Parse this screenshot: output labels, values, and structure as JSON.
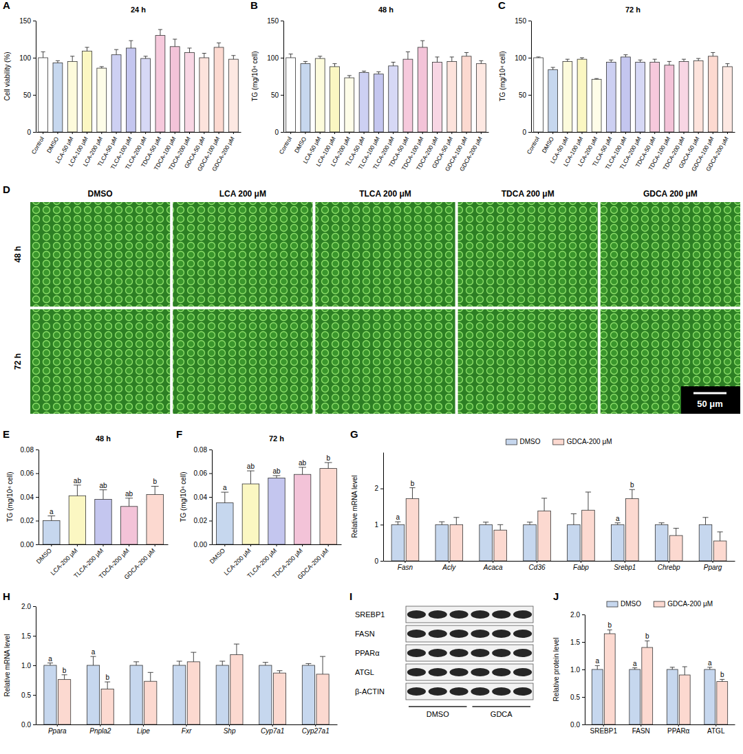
{
  "chart_data": [
    {
      "panel": "A",
      "type": "bar",
      "title": "24 h",
      "y_label": "Cell viability (%)",
      "categories": [
        "Control",
        "DMSO",
        "LCA-50 μM",
        "LCA-100 μM",
        "LCA-200 μM",
        "TLCA-50 μM",
        "TLCA-100 μM",
        "TLCA-200 μM",
        "TDCA-50 μM",
        "TDCA-100 μM",
        "TDCA-200 μM",
        "GDCA-50 μM",
        "GDCA-100 μM",
        "GDCA-200 μM"
      ],
      "values": [
        100,
        93,
        95,
        109,
        86,
        104,
        113,
        99,
        130,
        115,
        107,
        100,
        114,
        98
      ],
      "errors": [
        8,
        3,
        7,
        5,
        2,
        7,
        10,
        3,
        8,
        10,
        6,
        6,
        6,
        5
      ],
      "colors": [
        "#ffffff",
        "#c6d7ee",
        "#fdfbdc",
        "#fbf7c2",
        "#fefde8",
        "#cdd0f2",
        "#c4c6ef",
        "#d6d8f5",
        "#f6c9dc",
        "#f3c3d8",
        "#f8d6e4",
        "#fde3dc",
        "#fcd9d0",
        "#fde8e2"
      ],
      "ylim": [
        0,
        150
      ],
      "yticks": [
        0,
        50,
        100,
        150
      ]
    },
    {
      "panel": "B",
      "type": "bar",
      "title": "48 h",
      "y_label": "TG (mg/10⁴ cell)",
      "categories": [
        "Control",
        "DMSO",
        "LCA-50 μM",
        "LCA-100 μM",
        "LCA-200 μM",
        "TLCA-50 μM",
        "TLCA-100 μM",
        "TLCA-200 μM",
        "TDCA-50 μM",
        "TDCA-100 μM",
        "TDCA-200 μM",
        "GDCA-50 μM",
        "GDCA-100 μM",
        "GDCA-200 μM"
      ],
      "values": [
        100,
        92,
        99,
        88,
        73,
        80,
        78,
        89,
        98,
        114,
        94,
        95,
        102,
        92
      ],
      "errors": [
        5,
        3,
        3,
        4,
        3,
        2,
        3,
        5,
        10,
        9,
        7,
        6,
        5,
        4
      ],
      "colors": [
        "#ffffff",
        "#c6d7ee",
        "#fdfbdc",
        "#fbf7c2",
        "#fefde8",
        "#cdd0f2",
        "#c4c6ef",
        "#d6d8f5",
        "#f6c9dc",
        "#f3c3d8",
        "#f8d6e4",
        "#fde3dc",
        "#fcd9d0",
        "#fde8e2"
      ],
      "ylim": [
        0,
        150
      ],
      "yticks": [
        0,
        50,
        100,
        150
      ]
    },
    {
      "panel": "C",
      "type": "bar",
      "title": "72 h",
      "y_label": "TG (mg/10⁴ cell)",
      "categories": [
        "Control",
        "DMSO",
        "LCA-50 μM",
        "LCA-100 μM",
        "LCA-200 μM",
        "TLCA-50 μM",
        "TLCA-100 μM",
        "TLCA-200 μM",
        "TDCA-50 μM",
        "TDCA-100 μM",
        "TDCA-200 μM",
        "GDCA-50 μM",
        "GDCA-100 μM",
        "GDCA-200 μM"
      ],
      "values": [
        100,
        84,
        95,
        98,
        71,
        94,
        101,
        94,
        94,
        90,
        95,
        96,
        102,
        88
      ],
      "errors": [
        1,
        3,
        3,
        2,
        1,
        3,
        3,
        3,
        4,
        5,
        3,
        3,
        5,
        4
      ],
      "colors": [
        "#ffffff",
        "#c6d7ee",
        "#fdfbdc",
        "#fbf7c2",
        "#fefde8",
        "#cdd0f2",
        "#c4c6ef",
        "#d6d8f5",
        "#f6c9dc",
        "#f3c3d8",
        "#f8d6e4",
        "#fde3dc",
        "#fcd9d0",
        "#fde8e2"
      ],
      "ylim": [
        0,
        150
      ],
      "yticks": [
        0,
        50,
        100,
        150
      ]
    },
    {
      "panel": "E",
      "type": "bar",
      "title": "48 h",
      "y_label": "TG (mg/10⁴ cell)",
      "categories": [
        "DMSO",
        "LCA-200 μM",
        "TLCA-200 μM",
        "TDCA-200 μM",
        "GDCA-200 μM"
      ],
      "values": [
        0.02,
        0.041,
        0.038,
        0.032,
        0.042
      ],
      "errors": [
        0.004,
        0.009,
        0.008,
        0.007,
        0.007
      ],
      "letters": [
        "a",
        "ab",
        "ab",
        "ab",
        "b"
      ],
      "colors": [
        "#c6d7ee",
        "#fbf7c2",
        "#c4c6ef",
        "#f3c3d8",
        "#fcd9d0"
      ],
      "ylim": [
        0,
        0.08
      ],
      "yticks": [
        {
          "value": 0,
          "label": "0.00"
        },
        {
          "value": 0.02,
          "label": "0.02"
        },
        {
          "value": 0.04,
          "label": "0.04"
        },
        {
          "value": 0.06,
          "label": "0.06"
        },
        {
          "value": 0.08,
          "label": "0.08"
        }
      ]
    },
    {
      "panel": "F",
      "type": "bar",
      "title": "72 h",
      "y_label": "TG (mg/10⁴ cell)",
      "categories": [
        "DMSO",
        "LCA-200 μM",
        "TLCA-200 μM",
        "TDCA-200 μM",
        "GDCA-200 μM"
      ],
      "values": [
        0.035,
        0.051,
        0.056,
        0.059,
        0.064
      ],
      "errors": [
        0.009,
        0.011,
        0.002,
        0.006,
        0.005
      ],
      "letters": [
        "a",
        "ab",
        "ab",
        "ab",
        "b"
      ],
      "colors": [
        "#c6d7ee",
        "#fbf7c2",
        "#c4c6ef",
        "#f3c3d8",
        "#fcd9d0"
      ],
      "ylim": [
        0,
        0.08
      ],
      "yticks": [
        {
          "value": 0,
          "label": "0.00"
        },
        {
          "value": 0.02,
          "label": "0.02"
        },
        {
          "value": 0.04,
          "label": "0.04"
        },
        {
          "value": 0.06,
          "label": "0.06"
        },
        {
          "value": 0.08,
          "label": "0.08"
        }
      ]
    },
    {
      "panel": "G",
      "type": "bar",
      "y_label": "Relative mRNA level",
      "legend": "top",
      "categories": [
        "Fasn",
        "Acly",
        "Acaca",
        "Cd36",
        "Fabp",
        "Srebp1",
        "Chrebp",
        "Pparg"
      ],
      "series": [
        {
          "name": "DMSO",
          "color": "#c6d7ee",
          "values": [
            1,
            1,
            1,
            1,
            1,
            1,
            1,
            1
          ],
          "errors": [
            0.08,
            0.08,
            0.07,
            0.07,
            0.3,
            0.05,
            0.05,
            0.2
          ],
          "letters": [
            "a",
            null,
            null,
            null,
            null,
            "a",
            null,
            null
          ]
        },
        {
          "name": "GDCA-200 μM",
          "color": "#fcd9d0",
          "values": [
            1.72,
            1.0,
            0.85,
            1.38,
            1.4,
            1.72,
            0.7,
            0.55
          ],
          "errors": [
            0.3,
            0.2,
            0.15,
            0.35,
            0.5,
            0.25,
            0.2,
            0.25
          ],
          "letters": [
            "b",
            null,
            null,
            null,
            null,
            "b",
            null,
            null
          ]
        }
      ],
      "ylim": [
        0,
        3
      ],
      "yticks": [
        0,
        1,
        2
      ]
    },
    {
      "panel": "H",
      "type": "bar",
      "y_label": "Relative mRNA level",
      "categories": [
        "Ppara",
        "Pnpla2",
        "Lipe",
        "Fxr",
        "Shp",
        "Cyp7a1",
        "Cyp27a1"
      ],
      "series": [
        {
          "color": "#c6d7ee",
          "values": [
            1,
            1,
            1,
            1,
            1,
            1,
            1
          ],
          "errors": [
            0.04,
            0.15,
            0.06,
            0.07,
            0.07,
            0.05,
            0.03
          ],
          "letters": [
            "a",
            "a",
            null,
            null,
            null,
            null,
            null
          ]
        },
        {
          "color": "#fcd9d0",
          "values": [
            0.76,
            0.6,
            0.73,
            1.06,
            1.18,
            0.87,
            0.85
          ],
          "errors": [
            0.08,
            0.12,
            0.15,
            0.16,
            0.18,
            0.04,
            0.3
          ],
          "letters": [
            "b",
            "b",
            null,
            null,
            null,
            null,
            null
          ]
        }
      ],
      "ylim": [
        0,
        2.0
      ],
      "yticks": [
        {
          "value": 0,
          "label": "0.0"
        },
        {
          "value": 0.5,
          "label": "0.5"
        },
        {
          "value": 1.0,
          "label": "1.0"
        },
        {
          "value": 1.5,
          "label": "1.5"
        },
        {
          "value": 2.0,
          "label": "2.0"
        }
      ]
    },
    {
      "panel": "J",
      "type": "bar",
      "y_label": "Relative protein level",
      "legend": "top",
      "categories": [
        "SREBP1",
        "FASN",
        "PPARα",
        "ATGL"
      ],
      "series": [
        {
          "name": "DMSO",
          "color": "#c6d7ee",
          "values": [
            1,
            1,
            1,
            1
          ],
          "errors": [
            0.07,
            0.03,
            0.04,
            0.04
          ],
          "letters": [
            "a",
            "a",
            null,
            "a"
          ]
        },
        {
          "name": "GDCA-200 μM",
          "color": "#fcd9d0",
          "values": [
            1.65,
            1.4,
            0.9,
            0.78
          ],
          "errors": [
            0.07,
            0.12,
            0.15,
            0.04
          ],
          "letters": [
            "b",
            "b",
            null,
            "b"
          ]
        }
      ],
      "ylim": [
        0,
        2.0
      ],
      "yticks": [
        {
          "value": 0,
          "label": "0.0"
        },
        {
          "value": 0.5,
          "label": "0.5"
        },
        {
          "value": 1.0,
          "label": "1.0"
        },
        {
          "value": 1.5,
          "label": "1.5"
        },
        {
          "value": 2.0,
          "label": "2.0"
        }
      ]
    }
  ],
  "micrographs": {
    "panel": "D",
    "columns": [
      "DMSO",
      "LCA 200 μM",
      "TLCA 200 μM",
      "TDCA 200 μM",
      "GDCA 200 μM"
    ],
    "rows": [
      "48 h",
      "72 h"
    ],
    "scale_bar": "50 μm"
  },
  "western_blot": {
    "panel": "I",
    "proteins": [
      "SREBP1",
      "FASN",
      "PPARα",
      "ATGL",
      "β-ACTIN"
    ],
    "groups": [
      "DMSO",
      "GDCA"
    ]
  }
}
